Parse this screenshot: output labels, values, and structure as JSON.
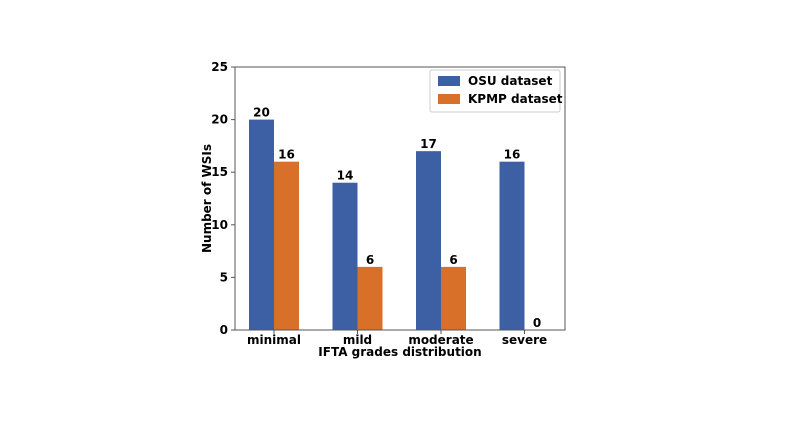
{
  "chart_data": {
    "type": "bar",
    "xlabel": "IFTA grades distribution",
    "ylabel": "Number of WSIs",
    "categories": [
      "minimal",
      "mild",
      "moderate",
      "severe"
    ],
    "series": [
      {
        "name": "OSU dataset",
        "color": "#3d5fa3",
        "values": [
          20,
          14,
          17,
          16
        ]
      },
      {
        "name": "KPMP dataset",
        "color": "#d9702a",
        "values": [
          16,
          6,
          6,
          0
        ]
      }
    ],
    "ylim": [
      0,
      25
    ],
    "yticks": [
      "0",
      "5",
      "10",
      "15",
      "20",
      "25"
    ],
    "grid": false,
    "legend_position": "top-right"
  }
}
